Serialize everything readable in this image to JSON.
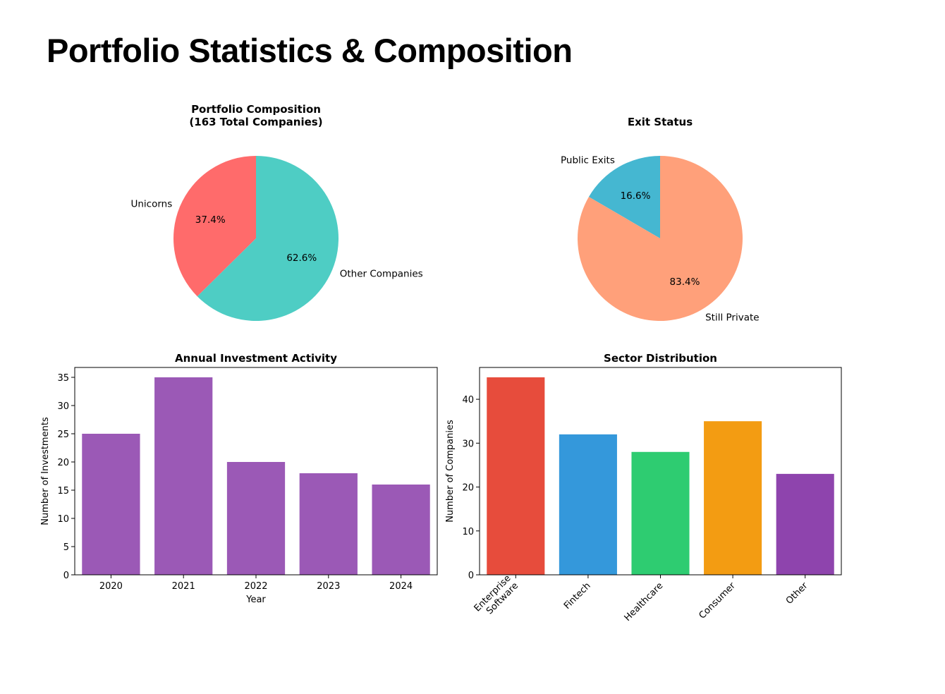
{
  "page": {
    "title": "Portfolio Statistics & Composition"
  },
  "chart_data": [
    {
      "type": "pie",
      "title_lines": [
        "Portfolio Composition",
        "(163 Total Companies)"
      ],
      "labels": [
        "Unicorns",
        "Other Companies"
      ],
      "values": [
        37.4,
        62.6
      ],
      "pct_labels": [
        "37.4%",
        "62.6%"
      ],
      "colors": [
        "#ff6b6b",
        "#4ecdc4"
      ],
      "start_angle": 90
    },
    {
      "type": "pie",
      "title_lines": [
        "Exit Status"
      ],
      "labels": [
        "Public Exits",
        "Still Private"
      ],
      "values": [
        16.6,
        83.4
      ],
      "pct_labels": [
        "16.6%",
        "83.4%"
      ],
      "colors": [
        "#45b7d1",
        "#ffa07a"
      ],
      "start_angle": 90
    },
    {
      "type": "bar",
      "title": "Annual Investment Activity",
      "categories": [
        "2020",
        "2021",
        "2022",
        "2023",
        "2024"
      ],
      "values": [
        25,
        35,
        20,
        18,
        16
      ],
      "color": "#9b59b6",
      "xlabel": "Year",
      "ylabel": "Number of Investments",
      "ylim": [
        0,
        36.75
      ],
      "yticks": [
        0,
        5,
        10,
        15,
        20,
        25,
        30,
        35
      ]
    },
    {
      "type": "bar",
      "title": "Sector Distribution",
      "categories": [
        "Enterprise\nSoftware",
        "Fintech",
        "Healthcare",
        "Consumer",
        "Other"
      ],
      "values": [
        45,
        32,
        28,
        35,
        23
      ],
      "colors": [
        "#e74c3c",
        "#3498db",
        "#2ecc71",
        "#f39c12",
        "#8e44ad"
      ],
      "xlabel": "",
      "ylabel": "Number of Companies",
      "ylim": [
        0,
        47.25
      ],
      "yticks": [
        0,
        10,
        20,
        30,
        40
      ],
      "xtick_rotation": 45
    }
  ]
}
